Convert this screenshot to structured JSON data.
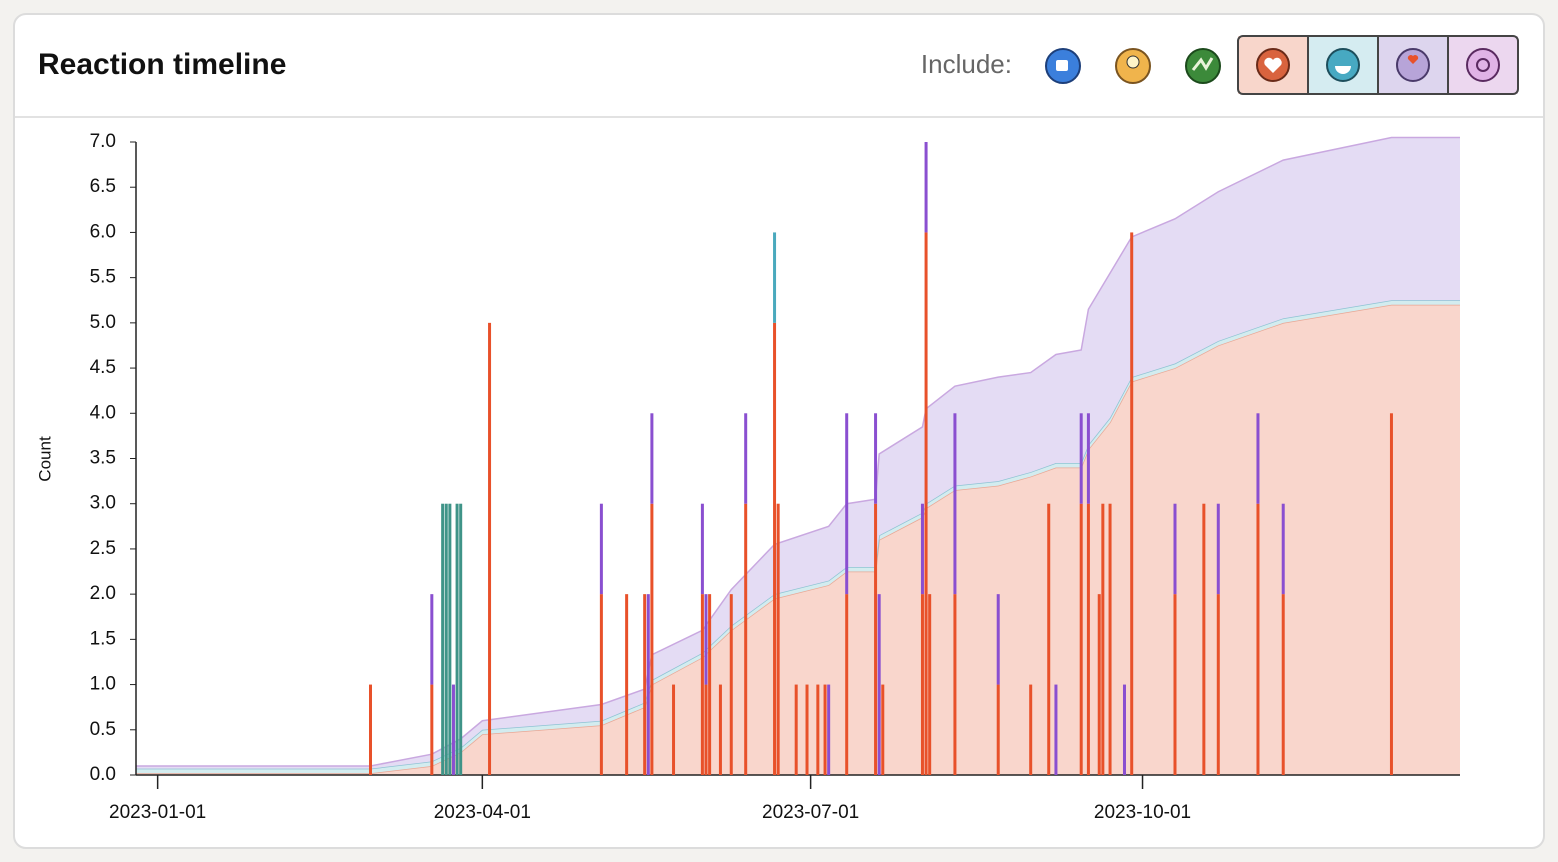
{
  "chart_data": {
    "type": "bar",
    "title": "Reaction timeline",
    "filter_label": "Include:",
    "ylabel": "Count",
    "xlim": [
      "2022-12-26",
      "2023-12-28"
    ],
    "xticks": [
      "2023-01-01",
      "2023-04-01",
      "2023-07-01",
      "2023-10-01"
    ],
    "ylim": [
      0,
      7
    ],
    "yticks": [
      {
        "value": 0,
        "label": "0.0"
      },
      {
        "value": 0.5,
        "label": "0.5"
      },
      {
        "value": 1,
        "label": "1.0"
      },
      {
        "value": 1.5,
        "label": "1.5"
      },
      {
        "value": 2,
        "label": "2.0"
      },
      {
        "value": 2.5,
        "label": "2.5"
      },
      {
        "value": 3,
        "label": "3.0"
      },
      {
        "value": 3.5,
        "label": "3.5"
      },
      {
        "value": 4,
        "label": "4.0"
      },
      {
        "value": 4.5,
        "label": "4.5"
      },
      {
        "value": 5,
        "label": "5.0"
      },
      {
        "value": 5.5,
        "label": "5.5"
      },
      {
        "value": 6,
        "label": "6.0"
      },
      {
        "value": 6.5,
        "label": "6.5"
      },
      {
        "value": 7,
        "label": "7.0"
      }
    ],
    "x": [
      "2023-03-01",
      "2023-03-18",
      "2023-03-21",
      "2023-03-22",
      "2023-03-23",
      "2023-03-24",
      "2023-03-25",
      "2023-03-26",
      "2023-04-03",
      "2023-05-04",
      "2023-05-11",
      "2023-05-16",
      "2023-05-17",
      "2023-05-18",
      "2023-05-24",
      "2023-06-01",
      "2023-06-02",
      "2023-06-03",
      "2023-06-06",
      "2023-06-09",
      "2023-06-13",
      "2023-06-21",
      "2023-06-22",
      "2023-06-27",
      "2023-06-30",
      "2023-07-03",
      "2023-07-05",
      "2023-07-06",
      "2023-07-11",
      "2023-07-19",
      "2023-07-20",
      "2023-07-21",
      "2023-08-01",
      "2023-08-02",
      "2023-08-03",
      "2023-08-10",
      "2023-08-22",
      "2023-08-31",
      "2023-09-05",
      "2023-09-07",
      "2023-09-14",
      "2023-09-16",
      "2023-09-19",
      "2023-09-20",
      "2023-09-22",
      "2023-09-26",
      "2023-09-28",
      "2023-10-10",
      "2023-10-18",
      "2023-10-22",
      "2023-11-02",
      "2023-11-09",
      "2023-12-09"
    ],
    "series": [
      {
        "color": "#e8512a",
        "values": [
          1,
          1,
          0,
          0,
          0,
          0,
          0,
          0,
          5,
          2,
          2,
          2,
          0,
          3,
          1,
          2,
          1,
          2,
          1,
          2,
          3,
          5,
          3,
          1,
          1,
          1,
          1,
          0,
          2,
          3,
          0,
          1,
          2,
          6,
          2,
          2,
          1,
          1,
          3,
          0,
          3,
          3,
          2,
          3,
          3,
          0,
          6,
          2,
          3,
          2,
          3,
          2,
          4
        ]
      },
      {
        "color": "#8a4fd0",
        "values": [
          0,
          1,
          0,
          0,
          0,
          1,
          0,
          0,
          0,
          1,
          0,
          0,
          2,
          1,
          0,
          1,
          1,
          0,
          0,
          0,
          1,
          0,
          0,
          0,
          0,
          0,
          0,
          1,
          2,
          1,
          2,
          0,
          1,
          1,
          0,
          2,
          1,
          0,
          0,
          1,
          1,
          1,
          0,
          0,
          0,
          1,
          0,
          1,
          0,
          1,
          1,
          1,
          0
        ]
      },
      {
        "color": "#4aa9bd",
        "values": [
          0,
          0,
          0,
          0,
          0,
          0,
          0,
          0,
          0,
          0,
          0,
          0,
          0,
          0,
          0,
          0,
          0,
          0,
          0,
          0,
          0,
          1,
          0,
          0,
          0,
          0,
          0,
          0,
          0,
          0,
          0,
          0,
          0,
          0,
          0,
          0,
          0,
          0,
          0,
          0,
          0,
          0,
          0,
          0,
          0,
          0,
          0,
          0,
          0,
          0,
          0,
          0,
          0
        ]
      },
      {
        "color": "#3f9488",
        "values": [
          0,
          0,
          3,
          3,
          3,
          0,
          3,
          3,
          0,
          0,
          0,
          0,
          0,
          0,
          0,
          0,
          0,
          0,
          0,
          0,
          0,
          0,
          0,
          0,
          0,
          0,
          0,
          0,
          0,
          0,
          0,
          0,
          0,
          0,
          0,
          0,
          0,
          0,
          0,
          0,
          0,
          0,
          0,
          0,
          0,
          0,
          0,
          0,
          0,
          0,
          0,
          0,
          0
        ]
      }
    ],
    "area": {
      "x": [
        "2022-12-26",
        "2023-03-01",
        "2023-03-18",
        "2023-03-26",
        "2023-04-01",
        "2023-05-04",
        "2023-05-16",
        "2023-05-18",
        "2023-06-01",
        "2023-06-09",
        "2023-06-21",
        "2023-07-06",
        "2023-07-11",
        "2023-07-19",
        "2023-07-20",
        "2023-08-01",
        "2023-08-02",
        "2023-08-10",
        "2023-08-22",
        "2023-08-31",
        "2023-09-07",
        "2023-09-14",
        "2023-09-16",
        "2023-09-22",
        "2023-09-28",
        "2023-10-10",
        "2023-10-22",
        "2023-11-09",
        "2023-12-09",
        "2023-12-28"
      ],
      "series": [
        {
          "color": "#f9d6cc",
          "stroke": "#e9a795",
          "values": [
            0.02,
            0.02,
            0.1,
            0.25,
            0.45,
            0.55,
            0.75,
            1.0,
            1.3,
            1.6,
            1.95,
            2.1,
            2.25,
            2.25,
            2.6,
            2.85,
            2.95,
            3.15,
            3.2,
            3.3,
            3.4,
            3.4,
            3.6,
            3.9,
            4.35,
            4.5,
            4.75,
            5.0,
            5.2,
            5.2
          ]
        },
        {
          "color": "#d3ecef",
          "stroke": "#8fc3d4",
          "values": [
            0.05,
            0.05,
            0.05,
            0.05,
            0.05,
            0.05,
            0.05,
            0.05,
            0.05,
            0.05,
            0.05,
            0.05,
            0.05,
            0.05,
            0.05,
            0.05,
            0.05,
            0.05,
            0.05,
            0.05,
            0.05,
            0.05,
            0.05,
            0.05,
            0.05,
            0.05,
            0.05,
            0.05,
            0.05,
            0.05
          ]
        },
        {
          "color": "#e4dcf4",
          "stroke": "#c9a8e0",
          "values": [
            0.03,
            0.03,
            0.08,
            0.1,
            0.1,
            0.18,
            0.15,
            0.28,
            0.25,
            0.4,
            0.55,
            0.6,
            0.7,
            0.75,
            0.9,
            0.95,
            1.05,
            1.1,
            1.15,
            1.1,
            1.2,
            1.25,
            1.5,
            1.6,
            1.55,
            1.6,
            1.65,
            1.75,
            1.8,
            1.8
          ]
        }
      ]
    }
  }
}
